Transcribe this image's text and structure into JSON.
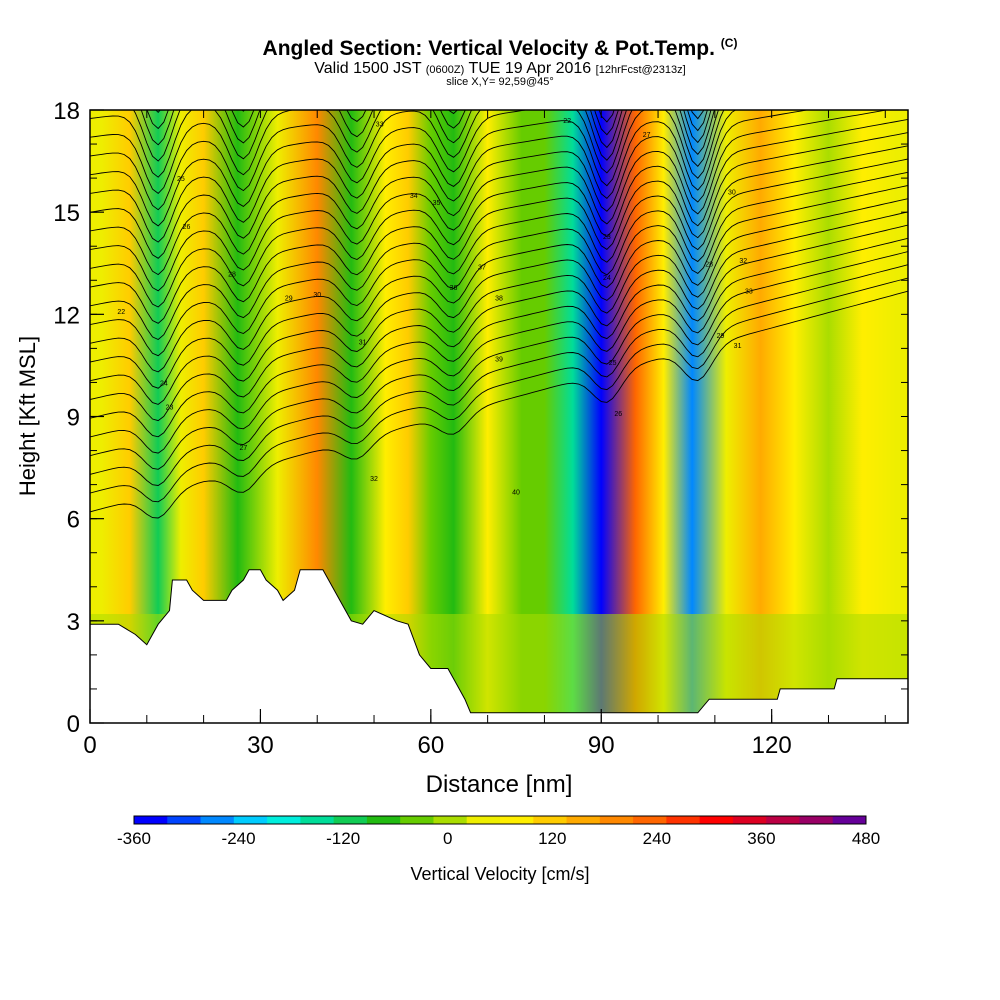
{
  "title": {
    "main": "Angled Section: Vertical Velocity & Pot.Temp.",
    "units": "(C)",
    "valid_prefix": "Valid 1500 JST",
    "zulu": "(0600Z)",
    "valid_date": "TUE 19 Apr 2016",
    "forecast": "[12hrFcst@2313z]",
    "slice": "slice X,Y= 92,59@45°"
  },
  "chart_data": {
    "type": "heatmap",
    "xlabel": "Distance [nm]",
    "ylabel": "Height [Kft MSL]",
    "xlim": [
      0,
      144
    ],
    "ylim": [
      0,
      18
    ],
    "x_ticks": [
      0,
      30,
      60,
      90,
      120
    ],
    "y_ticks": [
      0,
      3,
      6,
      9,
      12,
      15,
      18
    ],
    "colorbar": {
      "label": "Vertical Velocity [cm/s]",
      "range": [
        -360,
        480
      ],
      "tick_labels": [
        "-360",
        "-240",
        "-120",
        "0",
        "120",
        "240",
        "360",
        "480"
      ],
      "tick_values": [
        -360,
        -240,
        -120,
        0,
        120,
        240,
        360,
        480
      ],
      "colors": [
        "#0000ff",
        "#0044ff",
        "#0088ff",
        "#00ccff",
        "#00eedd",
        "#00dd99",
        "#11cc55",
        "#22bb11",
        "#66cc00",
        "#aadd00",
        "#eeee00",
        "#ffee00",
        "#ffcc00",
        "#ffaa00",
        "#ff8800",
        "#ff6600",
        "#ff3300",
        "#ff0000",
        "#dd0022",
        "#bb0044",
        "#990066",
        "#660099"
      ]
    },
    "series": [
      {
        "name": "Vertical Velocity",
        "description_points": [
          {
            "x": 2,
            "w": 40
          },
          {
            "x": 7,
            "w": 100
          },
          {
            "x": 12,
            "w": -100
          },
          {
            "x": 16,
            "w": 30
          },
          {
            "x": 20,
            "w": 100
          },
          {
            "x": 26,
            "w": -60
          },
          {
            "x": 33,
            "w": 40
          },
          {
            "x": 40,
            "w": 180
          },
          {
            "x": 46,
            "w": -80
          },
          {
            "x": 52,
            "w": 60
          },
          {
            "x": 56,
            "w": 100
          },
          {
            "x": 60,
            "w": -40
          },
          {
            "x": 64,
            "w": -60
          },
          {
            "x": 70,
            "w": 90
          },
          {
            "x": 76,
            "w": -40
          },
          {
            "x": 80,
            "w": -20
          },
          {
            "x": 85,
            "w": -150
          },
          {
            "x": 90,
            "w": -340
          },
          {
            "x": 96,
            "w": 230
          },
          {
            "x": 101,
            "w": 60
          },
          {
            "x": 106,
            "w": -260
          },
          {
            "x": 112,
            "w": 40
          },
          {
            "x": 118,
            "w": 140
          },
          {
            "x": 124,
            "w": 60
          },
          {
            "x": 130,
            "w": 20
          },
          {
            "x": 136,
            "w": 80
          },
          {
            "x": 142,
            "w": 30
          }
        ]
      }
    ],
    "terrain_kft": [
      [
        0,
        2.9
      ],
      [
        5,
        2.9
      ],
      [
        8,
        2.6
      ],
      [
        10,
        2.3
      ],
      [
        12,
        2.9
      ],
      [
        14,
        3.3
      ],
      [
        14.5,
        4.2
      ],
      [
        17,
        4.2
      ],
      [
        18,
        3.9
      ],
      [
        20,
        3.6
      ],
      [
        24,
        3.6
      ],
      [
        25,
        3.9
      ],
      [
        27,
        4.2
      ],
      [
        28,
        4.5
      ],
      [
        30,
        4.5
      ],
      [
        31,
        4.2
      ],
      [
        33,
        3.9
      ],
      [
        34,
        3.6
      ],
      [
        36,
        3.9
      ],
      [
        37,
        4.5
      ],
      [
        41,
        4.5
      ],
      [
        42,
        4.2
      ],
      [
        44,
        3.6
      ],
      [
        45,
        3.3
      ],
      [
        46,
        3.0
      ],
      [
        48,
        2.9
      ],
      [
        50,
        3.3
      ],
      [
        54,
        3.0
      ],
      [
        56,
        2.9
      ],
      [
        58,
        2.0
      ],
      [
        60,
        1.6
      ],
      [
        63,
        1.6
      ],
      [
        64,
        1.3
      ],
      [
        65,
        1.0
      ],
      [
        66,
        0.7
      ],
      [
        67,
        0.3
      ],
      [
        107,
        0.3
      ],
      [
        109,
        0.7
      ],
      [
        121,
        0.7
      ],
      [
        121.5,
        1.0
      ],
      [
        131,
        1.0
      ],
      [
        131.5,
        1.3
      ],
      [
        144,
        1.3
      ]
    ],
    "theta_contour_labels": [
      "22",
      "23",
      "24",
      "25",
      "26",
      "27",
      "28",
      "29",
      "30",
      "31",
      "32",
      "33",
      "34",
      "35",
      "36",
      "37",
      "38",
      "39",
      "40"
    ]
  }
}
